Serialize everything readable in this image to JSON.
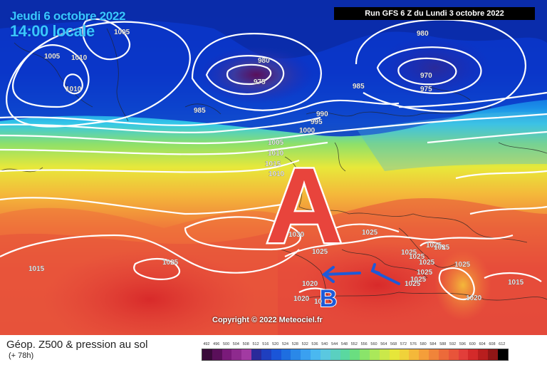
{
  "header": {
    "date_text": "Jeudi 6 octobre 2022",
    "hour_text": "14:00 locale",
    "run_text": "Run GFS 6 Z du Lundi 3 octobre 2022"
  },
  "map": {
    "high_letter": "A",
    "low_letter": "B",
    "copyright": "Copyright © 2022 Meteociel.fr",
    "pressure_labels": [
      {
        "text": "1005",
        "id": "a"
      },
      {
        "text": "1005",
        "id": "b"
      },
      {
        "text": "1010",
        "id": "c"
      },
      {
        "text": "1010",
        "id": "d"
      },
      {
        "text": "980",
        "id": "e"
      },
      {
        "text": "975",
        "id": "f"
      },
      {
        "text": "985",
        "id": "g"
      },
      {
        "text": "980",
        "id": "h"
      },
      {
        "text": "970",
        "id": "i"
      },
      {
        "text": "975",
        "id": "j"
      },
      {
        "text": "985",
        "id": "k"
      },
      {
        "text": "990",
        "id": "l"
      },
      {
        "text": "995",
        "id": "m"
      },
      {
        "text": "1000",
        "id": "n"
      },
      {
        "text": "1005",
        "id": "o"
      },
      {
        "text": "1010",
        "id": "p"
      },
      {
        "text": "1015",
        "id": "q"
      },
      {
        "text": "1030",
        "id": "r"
      },
      {
        "text": "1025",
        "id": "s"
      },
      {
        "text": "1025",
        "id": "t"
      },
      {
        "text": "1025",
        "id": "u"
      },
      {
        "text": "1025",
        "id": "v"
      },
      {
        "text": "1025",
        "id": "w"
      },
      {
        "text": "1025",
        "id": "x"
      },
      {
        "text": "1015",
        "id": "y"
      },
      {
        "text": "1025",
        "id": "z"
      },
      {
        "text": "1020",
        "id": "aa"
      },
      {
        "text": "1020",
        "id": "ab"
      },
      {
        "text": "1015",
        "id": "ac"
      },
      {
        "text": "1020",
        "id": "ad"
      },
      {
        "text": "1025",
        "id": "ae"
      },
      {
        "text": "1025",
        "id": "af"
      },
      {
        "text": "1025",
        "id": "ag"
      },
      {
        "text": "1025",
        "id": "ah"
      },
      {
        "text": "1025",
        "id": "ai"
      },
      {
        "text": "1010",
        "id": "aj"
      },
      {
        "text": "10",
        "id": "ak"
      }
    ]
  },
  "footer": {
    "title": "Géop. Z500 & pression au sol",
    "subtitle": "(+ 78h)",
    "legend_values": [
      "492",
      "496",
      "500",
      "504",
      "508",
      "512",
      "516",
      "520",
      "524",
      "528",
      "532",
      "536",
      "540",
      "544",
      "548",
      "552",
      "556",
      "560",
      "564",
      "568",
      "572",
      "576",
      "580",
      "584",
      "588",
      "592",
      "596",
      "600",
      "604",
      "608",
      "612"
    ],
    "legend_colors": [
      "#3a0a3a",
      "#5a0f5a",
      "#7a1a7a",
      "#8e2a8e",
      "#a23aa2",
      "#2a2a9a",
      "#1f3fbf",
      "#1a55d8",
      "#1e6ee0",
      "#2a88e8",
      "#3aa0f0",
      "#4ab8f0",
      "#5ac8e0",
      "#5ad0c0",
      "#5ad8a0",
      "#6ade80",
      "#8ae46a",
      "#aae85a",
      "#cae84a",
      "#e6e63a",
      "#f0d23a",
      "#f4b83a",
      "#f49e3a",
      "#f0843a",
      "#ec6a3a",
      "#e8543a",
      "#e23e3a",
      "#d42a2a",
      "#b81e1e",
      "#901616",
      "#000000"
    ]
  }
}
